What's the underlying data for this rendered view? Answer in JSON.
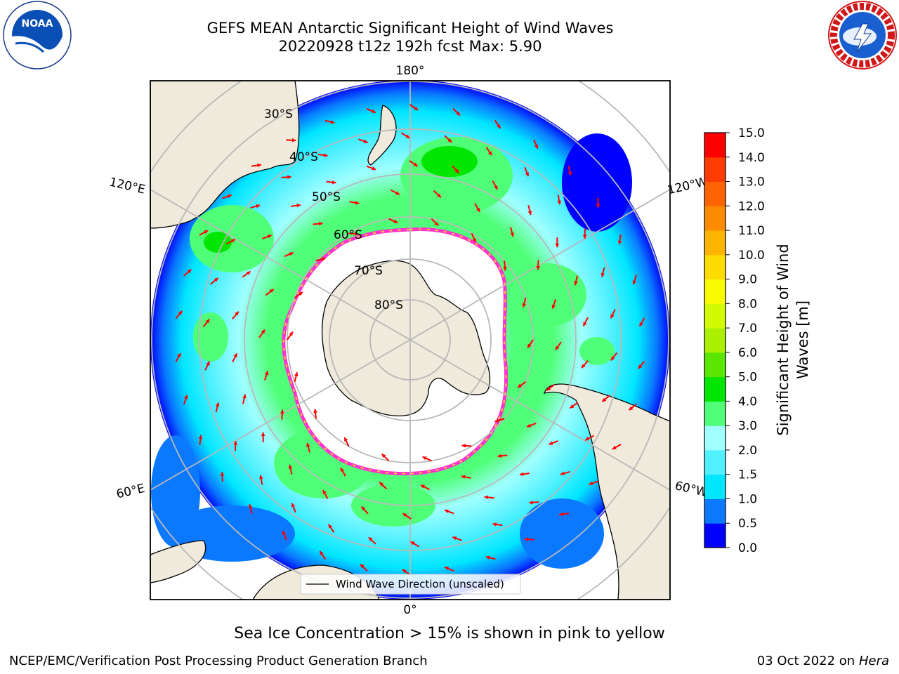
{
  "header": {
    "title_line1": "GEFS MEAN Antarctic Significant Height of Wind Waves",
    "title_line2": "20220928 t12z 192h fcst   Max: 5.90"
  },
  "logos": {
    "noaa": {
      "text": "NOAA",
      "ring_text": "NATIONAL OCEANIC AND ATMOSPHERIC ADMINISTRATION · U.S. DEPARTMENT OF COMMERCE"
    },
    "nws": {
      "ring_text": "NATIONAL WEATHER SERVICE"
    }
  },
  "map": {
    "projection": "south-polar-stereographic",
    "lon_labels": {
      "top": "180°",
      "bottom": "0°",
      "left_upper": "120°E",
      "left_lower": "60°E",
      "right_upper": "120°W",
      "right_lower": "60°W"
    },
    "lat_labels": [
      "30°S",
      "40°S",
      "50°S",
      "60°S",
      "70°S",
      "80°S"
    ],
    "legend_label": "Wind Wave Direction (unscaled)",
    "colors": {
      "land": "#efeadb",
      "coast": "#000000",
      "grid": "#b8b8b8",
      "arrow": "#ff0000",
      "ice_edge": "#ff33cc",
      "ice_low": "#ffcc33"
    }
  },
  "colorbar": {
    "label": "Significant Height of Wind Waves [m]",
    "ticks": [
      "0.0",
      "0.5",
      "1.0",
      "1.5",
      "2.0",
      "3.0",
      "4.0",
      "5.0",
      "6.0",
      "7.0",
      "8.0",
      "9.0",
      "10.0",
      "11.0",
      "12.0",
      "13.0",
      "14.0",
      "15.0"
    ],
    "colors": [
      "#0000ff",
      "#0a78ff",
      "#00e6ff",
      "#50f0ff",
      "#a0ffff",
      "#50ff78",
      "#00e600",
      "#5ae600",
      "#aaf000",
      "#d2fa00",
      "#fafa00",
      "#ffdc00",
      "#ffb400",
      "#ff8c00",
      "#ff6400",
      "#ff3c00",
      "#ff0000"
    ]
  },
  "chart_data": {
    "type": "heatmap",
    "title": "GEFS MEAN Antarctic Significant Height of Wind Waves",
    "subtitle": "20220928 t12z 192h fcst   Max: 5.90",
    "variable": "Significant Height of Wind Waves [m]",
    "max_value": 5.9,
    "color_levels": [
      0.0,
      0.5,
      1.0,
      1.5,
      2.0,
      3.0,
      4.0,
      5.0,
      6.0,
      7.0,
      8.0,
      9.0,
      10.0,
      11.0,
      12.0,
      13.0,
      14.0,
      15.0
    ],
    "overlay": "Wind Wave Direction (unscaled)"
  },
  "caption": "Sea Ice Concentration > 15% is shown in pink to yellow",
  "footer": {
    "left": "NCEP/EMC/Verification Post Processing Product Generation Branch",
    "right_date": "03 Oct 2022 on",
    "right_host": "Hera"
  }
}
